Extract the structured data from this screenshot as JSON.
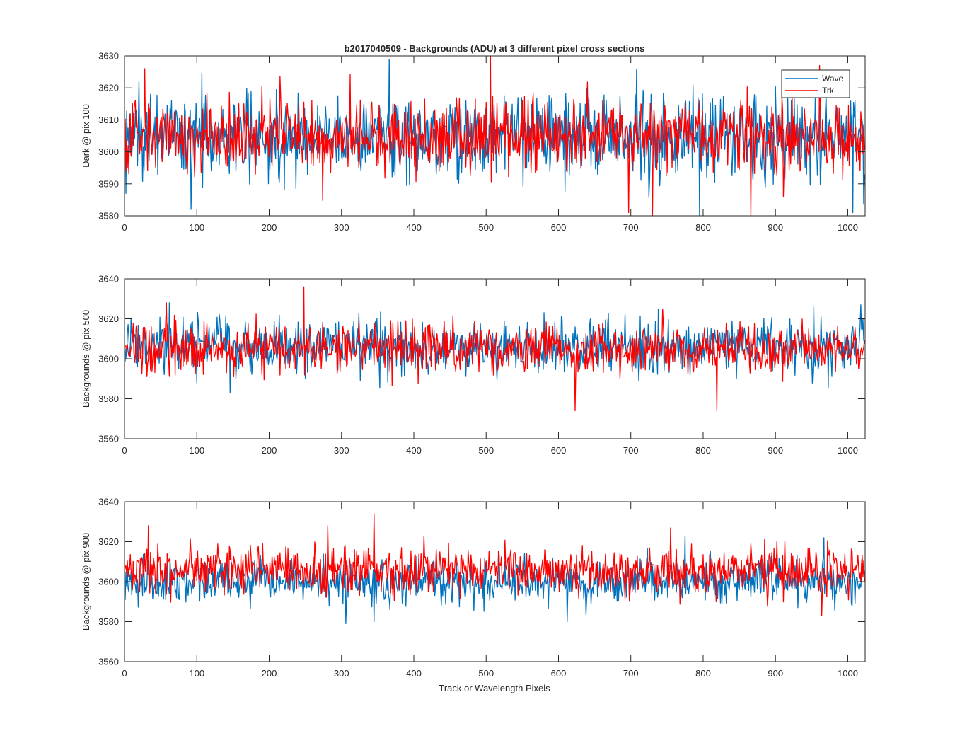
{
  "figure": {
    "title": "b2017040509 - Backgrounds (ADU) at 3 different pixel cross sections",
    "xlabel": "Track or Wavelength Pixels"
  },
  "colors": {
    "wave": "#0072BD",
    "trk": "#FF0000",
    "axis": "#262626"
  },
  "legend": {
    "placement": "top-right",
    "entries": [
      "Wave",
      "Trk"
    ]
  },
  "chart_data": [
    {
      "type": "line",
      "ylabel": "Dark @ pix 100",
      "xlim": [
        0,
        1024
      ],
      "ylim": [
        3580,
        3630
      ],
      "xticks": [
        0,
        100,
        200,
        300,
        400,
        500,
        600,
        700,
        800,
        900,
        1000
      ],
      "yticks": [
        3580,
        3590,
        3600,
        3610,
        3620,
        3630
      ],
      "series": [
        {
          "name": "Wave",
          "n_points": 1024,
          "mean": 3605,
          "noise_sd": 6.5,
          "min": 3580,
          "max": 3629,
          "spikes": [
            [
              92,
              3582
            ],
            [
              366,
              3629
            ],
            [
              795,
              3580
            ],
            [
              1007,
              3581
            ],
            [
              2,
              3587
            ]
          ]
        },
        {
          "name": "Trk",
          "n_points": 1024,
          "mean": 3605,
          "noise_sd": 5.5,
          "min": 3580,
          "max": 3630,
          "spikes": [
            [
              506,
              3630
            ],
            [
              730,
              3580
            ],
            [
              697,
              3581
            ],
            [
              866,
              3580
            ],
            [
              961,
              3627
            ],
            [
              28,
              3626
            ]
          ]
        }
      ]
    },
    {
      "type": "line",
      "ylabel": "Backgrounds @ pix 500",
      "xlim": [
        0,
        1024
      ],
      "ylim": [
        3560,
        3640
      ],
      "xticks": [
        0,
        100,
        200,
        300,
        400,
        500,
        600,
        700,
        800,
        900,
        1000
      ],
      "yticks": [
        3560,
        3580,
        3600,
        3620,
        3640
      ],
      "series": [
        {
          "name": "Wave",
          "n_points": 1024,
          "mean": 3606,
          "noise_sd": 6.5,
          "min": 3583,
          "max": 3628,
          "spikes": [
            [
              62,
              3628
            ],
            [
              146,
              3583
            ],
            [
              1018,
              3627
            ]
          ]
        },
        {
          "name": "Trk",
          "n_points": 1024,
          "mean": 3605,
          "noise_sd": 6.0,
          "min": 3574,
          "max": 3636,
          "spikes": [
            [
              248,
              3636
            ],
            [
              623,
              3574
            ],
            [
              819,
              3574
            ],
            [
              58,
              3628
            ]
          ]
        }
      ]
    },
    {
      "type": "line",
      "ylabel": "Backgrounds @ pix 900",
      "xlim": [
        0,
        1024
      ],
      "ylim": [
        3560,
        3640
      ],
      "xticks": [
        0,
        100,
        200,
        300,
        400,
        500,
        600,
        700,
        800,
        900,
        1000
      ],
      "yticks": [
        3560,
        3580,
        3600,
        3620,
        3640
      ],
      "series": [
        {
          "name": "Wave",
          "n_points": 1024,
          "mean": 3600,
          "noise_sd": 5.5,
          "min": 3579,
          "max": 3624,
          "spikes": [
            [
              306,
              3579
            ],
            [
              345,
              3580
            ],
            [
              612,
              3580
            ],
            [
              775,
              3623
            ],
            [
              967,
              3622
            ]
          ]
        },
        {
          "name": "Trk",
          "n_points": 1024,
          "mean": 3606,
          "noise_sd": 6.0,
          "min": 3583,
          "max": 3634,
          "spikes": [
            [
              345,
              3634
            ],
            [
              33,
              3628
            ],
            [
              281,
              3628
            ],
            [
              964,
              3583
            ]
          ]
        }
      ]
    }
  ]
}
